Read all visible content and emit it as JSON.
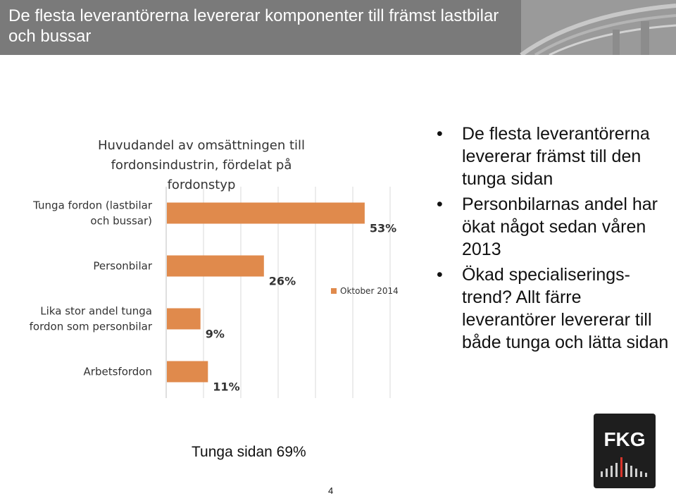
{
  "slide": {
    "title": "De flesta leverantörerna levererar komponenter till främst lastbilar och bussar",
    "bullets": [
      "De flesta leverantörerna levererar främst till den tunga sidan",
      "Personbilarnas andel har ökat något sedan våren 2013",
      "Ökad specialiserings-trend? Allt färre leverantörer levererar till både tunga och lätta sidan"
    ],
    "summary": "Tunga sidan 69%",
    "page_number": "4",
    "logo_text": "FKG"
  },
  "colors": {
    "bar": "#e08a4c",
    "header": "#7f7f7f",
    "gridline": "#d9d9d9",
    "logo_bg": "#1e1e1e"
  },
  "chart_data": {
    "type": "bar",
    "orientation": "horizontal",
    "title": "Huvudandel av omsättningen till fordonsindustrin, fördelat på fordonstyp",
    "categories": [
      "Tunga fordon (lastbilar och bussar)",
      "Personbilar",
      "Lika stor andel tunga fordon som personbilar",
      "Arbetsfordon"
    ],
    "series": [
      {
        "name": "Oktober 2014",
        "values": [
          53,
          26,
          9,
          11
        ]
      }
    ],
    "value_labels": [
      "53%",
      "26%",
      "9%",
      "11%"
    ],
    "xlim": [
      0,
      60
    ],
    "grid": true,
    "legend": "right"
  }
}
